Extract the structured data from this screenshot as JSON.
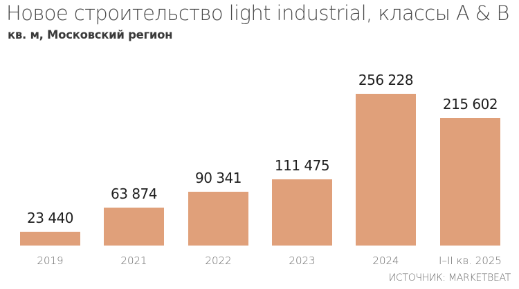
{
  "header": {
    "title": "Новое строительство light industrial, классы A & B",
    "subtitle": "кв. м, Московский регион"
  },
  "footer": {
    "source": "ИСТОЧНИК: MARKETBEAT"
  },
  "style": {
    "bar_color": "#e0a07a",
    "title_color": "#4a4a4a",
    "label_color": "#1f1f1f",
    "axis_label_color": "#6a6a6a"
  },
  "chart_data": {
    "type": "bar",
    "title": "Новое строительство light industrial, классы A & B",
    "subtitle": "кв. м, Московский регион",
    "xlabel": "",
    "ylabel": "кв. м",
    "categories": [
      "2019",
      "2021",
      "2022",
      "2023",
      "2024",
      "I–II кв. 2025"
    ],
    "values": [
      23440,
      63874,
      90341,
      111475,
      256228,
      215602
    ],
    "value_labels": [
      "23 440",
      "63 874",
      "90 341",
      "111 475",
      "256 228",
      "215 602"
    ],
    "ylim": [
      0,
      256228
    ],
    "grid": false,
    "legend": "none",
    "annotations": [
      "ИСТОЧНИК: MARKETBEAT"
    ]
  }
}
